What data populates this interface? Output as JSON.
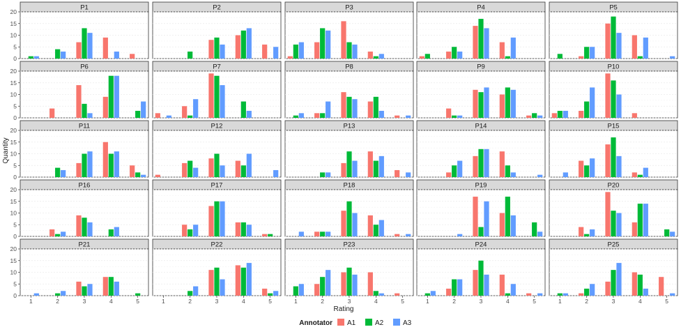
{
  "chart_data": {
    "type": "bar",
    "layout": "facet-grid",
    "xlabel": "Rating",
    "ylabel": "Quantity",
    "categories": [
      1,
      1.5,
      2,
      2.5,
      3,
      3.5,
      4,
      4.5,
      5
    ],
    "x_ticks": [
      1,
      2,
      3,
      4,
      5
    ],
    "ylim": [
      0,
      20
    ],
    "y_ticks": [
      0,
      5,
      10,
      15,
      20
    ],
    "grid": true,
    "legend": {
      "title": "Annotator",
      "placement": "bottom",
      "entries": [
        {
          "name": "A1",
          "color": "#F8766D"
        },
        {
          "name": "A2",
          "color": "#00BA38"
        },
        {
          "name": "A3",
          "color": "#619CFF"
        }
      ]
    },
    "facets": [
      {
        "title": "P1",
        "series": {
          "A1": [
            0,
            0,
            0,
            0,
            7,
            0,
            9,
            0,
            2
          ],
          "A2": [
            1,
            0,
            4,
            0,
            13,
            0,
            0,
            0,
            0
          ],
          "A3": [
            1,
            0,
            3,
            0,
            11,
            0,
            3,
            0,
            0
          ]
        }
      },
      {
        "title": "P2",
        "series": {
          "A1": [
            0,
            0,
            0,
            0,
            8,
            0,
            10,
            0,
            6
          ],
          "A2": [
            0,
            0,
            3,
            0,
            9,
            0,
            12,
            0,
            0
          ],
          "A3": [
            0,
            0,
            0,
            0,
            6,
            0,
            13,
            0,
            5
          ]
        }
      },
      {
        "title": "P3",
        "series": {
          "A1": [
            1,
            0,
            7,
            0,
            16,
            0,
            3,
            0,
            0
          ],
          "A2": [
            6,
            0,
            13,
            0,
            7,
            0,
            1,
            0,
            0
          ],
          "A3": [
            7,
            0,
            12,
            0,
            6,
            0,
            2,
            0,
            0
          ]
        }
      },
      {
        "title": "P4",
        "series": {
          "A1": [
            1,
            0,
            3,
            0,
            14,
            0,
            7,
            0,
            0
          ],
          "A2": [
            2,
            0,
            5,
            0,
            17,
            0,
            1,
            0,
            0
          ],
          "A3": [
            0,
            0,
            3,
            0,
            13,
            0,
            9,
            0,
            0
          ]
        }
      },
      {
        "title": "P5",
        "series": {
          "A1": [
            0,
            0,
            1,
            0,
            15,
            0,
            10,
            0,
            0
          ],
          "A2": [
            2,
            0,
            5,
            0,
            18,
            0,
            1,
            0,
            0
          ],
          "A3": [
            0,
            0,
            5,
            0,
            11,
            0,
            9,
            0,
            1
          ]
        }
      },
      {
        "title": "P6",
        "series": {
          "A1": [
            0,
            0,
            4,
            0,
            14,
            0,
            9,
            0,
            0
          ],
          "A2": [
            0,
            0,
            0,
            0,
            6,
            0,
            18,
            0,
            3
          ],
          "A3": [
            0,
            0,
            0,
            0,
            2,
            0,
            18,
            0,
            7
          ]
        }
      },
      {
        "title": "P7",
        "series": {
          "A1": [
            2,
            0,
            5,
            0,
            19,
            0,
            0,
            0,
            0
          ],
          "A2": [
            0,
            0,
            1,
            0,
            18,
            0,
            7,
            0,
            0
          ],
          "A3": [
            1,
            0,
            8,
            0,
            14,
            0,
            3,
            0,
            0
          ]
        }
      },
      {
        "title": "P8",
        "series": {
          "A1": [
            0,
            0,
            2,
            0,
            11,
            0,
            7,
            0,
            1
          ],
          "A2": [
            1,
            0,
            2,
            0,
            9,
            0,
            9,
            0,
            0
          ],
          "A3": [
            2,
            0,
            7,
            0,
            8,
            0,
            3,
            0,
            1
          ]
        }
      },
      {
        "title": "P9",
        "series": {
          "A1": [
            0,
            0,
            4,
            0,
            12,
            0,
            10,
            0,
            1
          ],
          "A2": [
            0,
            0,
            1,
            0,
            11,
            0,
            13,
            0,
            2
          ],
          "A3": [
            0,
            0,
            1,
            0,
            13,
            0,
            12,
            0,
            1
          ]
        }
      },
      {
        "title": "P10",
        "series": {
          "A1": [
            2,
            0,
            3,
            0,
            19,
            0,
            2,
            0,
            0
          ],
          "A2": [
            3,
            0,
            7,
            0,
            16,
            0,
            0,
            0,
            0
          ],
          "A3": [
            3,
            0,
            13,
            0,
            10,
            0,
            0,
            0,
            0
          ]
        }
      },
      {
        "title": "P11",
        "series": {
          "A1": [
            0,
            0,
            0,
            0,
            6,
            0,
            15,
            0,
            5
          ],
          "A2": [
            0,
            0,
            4,
            0,
            10,
            0,
            10,
            0,
            2
          ],
          "A3": [
            0,
            0,
            3,
            0,
            11,
            0,
            11,
            0,
            1
          ]
        }
      },
      {
        "title": "P12",
        "series": {
          "A1": [
            1,
            0,
            6,
            0,
            8,
            0,
            7,
            0,
            0
          ],
          "A2": [
            0,
            0,
            7,
            0,
            10,
            0,
            5,
            0,
            0
          ],
          "A3": [
            0,
            0,
            4,
            0,
            5,
            0,
            10,
            0,
            3
          ]
        }
      },
      {
        "title": "P13",
        "series": {
          "A1": [
            0,
            0,
            0,
            0,
            6,
            0,
            11,
            0,
            3
          ],
          "A2": [
            0,
            0,
            2,
            0,
            11,
            0,
            7,
            0,
            0
          ],
          "A3": [
            0,
            0,
            2,
            0,
            7,
            0,
            9,
            0,
            2
          ]
        }
      },
      {
        "title": "P14",
        "series": {
          "A1": [
            0,
            0,
            2,
            0,
            9,
            0,
            11,
            0,
            0
          ],
          "A2": [
            0,
            0,
            5,
            0,
            12,
            0,
            5,
            0,
            0
          ],
          "A3": [
            0,
            0,
            7,
            0,
            12,
            0,
            2,
            0,
            1
          ]
        }
      },
      {
        "title": "P15",
        "series": {
          "A1": [
            0,
            0,
            7,
            0,
            14,
            0,
            2,
            0,
            0
          ],
          "A2": [
            0,
            0,
            5,
            0,
            17,
            0,
            1,
            0,
            0
          ],
          "A3": [
            2,
            0,
            8,
            0,
            9,
            0,
            4,
            0,
            0
          ]
        }
      },
      {
        "title": "P16",
        "series": {
          "A1": [
            0,
            0,
            3,
            0,
            9,
            0,
            0,
            0,
            0
          ],
          "A2": [
            0,
            0,
            1,
            0,
            8,
            0,
            3,
            0,
            0
          ],
          "A3": [
            0,
            0,
            2,
            0,
            6,
            0,
            4,
            0,
            0
          ]
        }
      },
      {
        "title": "P17",
        "series": {
          "A1": [
            0,
            0,
            5,
            0,
            13,
            0,
            6,
            0,
            1
          ],
          "A2": [
            0,
            0,
            3,
            0,
            15,
            0,
            6,
            0,
            1
          ],
          "A3": [
            0,
            0,
            5,
            0,
            15,
            0,
            5,
            0,
            0
          ]
        }
      },
      {
        "title": "P18",
        "series": {
          "A1": [
            0,
            0,
            2,
            0,
            11,
            0,
            9,
            0,
            1
          ],
          "A2": [
            0,
            0,
            2,
            0,
            15,
            0,
            5,
            0,
            0
          ],
          "A3": [
            2,
            0,
            2,
            0,
            10,
            0,
            7,
            0,
            1
          ]
        }
      },
      {
        "title": "P19",
        "series": {
          "A1": [
            0,
            0,
            0,
            0,
            17,
            0,
            10,
            0,
            0
          ],
          "A2": [
            0,
            0,
            0,
            0,
            4,
            0,
            17,
            0,
            6
          ],
          "A3": [
            0,
            0,
            1,
            0,
            15,
            0,
            9,
            0,
            2
          ]
        }
      },
      {
        "title": "P20",
        "series": {
          "A1": [
            0,
            0,
            4,
            0,
            19,
            0,
            6,
            0,
            0
          ],
          "A2": [
            0,
            0,
            1,
            0,
            11,
            0,
            14,
            0,
            3
          ],
          "A3": [
            0,
            0,
            3,
            0,
            10,
            0,
            14,
            0,
            2
          ]
        }
      },
      {
        "title": "P21",
        "series": {
          "A1": [
            0,
            0,
            0,
            0,
            6,
            0,
            8,
            0,
            0
          ],
          "A2": [
            0,
            0,
            1,
            0,
            4,
            0,
            8,
            0,
            1
          ],
          "A3": [
            1,
            0,
            2,
            0,
            5,
            0,
            6,
            0,
            0
          ]
        }
      },
      {
        "title": "P22",
        "series": {
          "A1": [
            0,
            0,
            0,
            0,
            11,
            0,
            13,
            0,
            3
          ],
          "A2": [
            0,
            0,
            2,
            0,
            12,
            0,
            12,
            0,
            1
          ],
          "A3": [
            0,
            0,
            4,
            0,
            7,
            0,
            14,
            0,
            2
          ]
        }
      },
      {
        "title": "P23",
        "series": {
          "A1": [
            0,
            0,
            5,
            0,
            10,
            0,
            10,
            0,
            1
          ],
          "A2": [
            4,
            0,
            8,
            0,
            12,
            0,
            2,
            0,
            0
          ],
          "A3": [
            5,
            0,
            11,
            0,
            9,
            0,
            1,
            0,
            0
          ]
        }
      },
      {
        "title": "P24",
        "series": {
          "A1": [
            0,
            0,
            3,
            0,
            11,
            0,
            9,
            0,
            1
          ],
          "A2": [
            1,
            0,
            7,
            0,
            15,
            0,
            1,
            0,
            0
          ],
          "A3": [
            2,
            0,
            7,
            0,
            9,
            0,
            5,
            0,
            1
          ]
        }
      },
      {
        "title": "P25",
        "series": {
          "A1": [
            0,
            0,
            1,
            0,
            6,
            0,
            10,
            0,
            8
          ],
          "A2": [
            1,
            0,
            3,
            0,
            11,
            0,
            9,
            0,
            0
          ],
          "A3": [
            1,
            0,
            5,
            0,
            14,
            0,
            3,
            0,
            1
          ]
        }
      }
    ]
  }
}
